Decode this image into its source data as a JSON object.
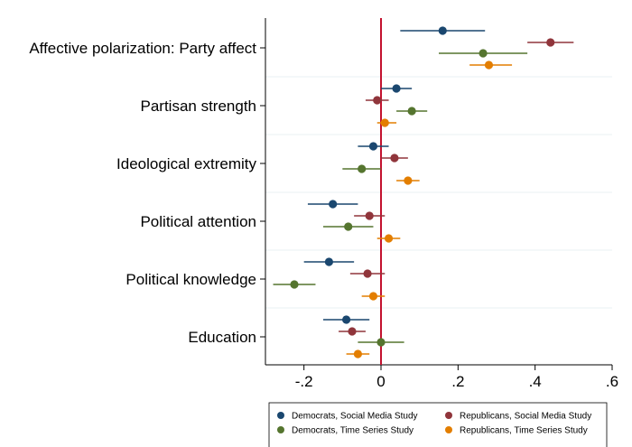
{
  "chart_data": {
    "type": "scatter",
    "orientation": "horizontal-coefficient-plot",
    "categories": [
      "Affective polarization: Party affect",
      "Partisan strength",
      "Ideological extremity",
      "Political attention",
      "Political knowledge",
      "Education"
    ],
    "xlim": [
      -0.3,
      0.6
    ],
    "xticks": [
      -0.2,
      0,
      0.2,
      0.4,
      0.6
    ],
    "xtick_labels": [
      "-.2",
      "0",
      ".2",
      ".4",
      ".6"
    ],
    "reference_line": {
      "x": 0,
      "color": "#c3122f"
    },
    "grid": "horizontal separators between categories",
    "legend_position": "bottom",
    "series": [
      {
        "name": "Democrats, Social Media Study",
        "color": "#1a476f",
        "points": [
          {
            "estimate": 0.16,
            "low": 0.05,
            "high": 0.27
          },
          {
            "estimate": 0.04,
            "low": 0.0,
            "high": 0.08
          },
          {
            "estimate": -0.02,
            "low": -0.06,
            "high": 0.02
          },
          {
            "estimate": -0.125,
            "low": -0.19,
            "high": -0.06
          },
          {
            "estimate": -0.135,
            "low": -0.2,
            "high": -0.07
          },
          {
            "estimate": -0.09,
            "low": -0.15,
            "high": -0.03
          }
        ]
      },
      {
        "name": "Republicans, Social Media Study",
        "color": "#90353b",
        "points": [
          {
            "estimate": 0.44,
            "low": 0.38,
            "high": 0.5
          },
          {
            "estimate": -0.01,
            "low": -0.04,
            "high": 0.02
          },
          {
            "estimate": 0.035,
            "low": 0.0,
            "high": 0.07
          },
          {
            "estimate": -0.03,
            "low": -0.07,
            "high": 0.01
          },
          {
            "estimate": -0.035,
            "low": -0.08,
            "high": 0.01
          },
          {
            "estimate": -0.075,
            "low": -0.11,
            "high": -0.04
          }
        ]
      },
      {
        "name": "Democrats, Time Series Study",
        "color": "#55752f",
        "points": [
          {
            "estimate": 0.265,
            "low": 0.15,
            "high": 0.38
          },
          {
            "estimate": 0.08,
            "low": 0.04,
            "high": 0.12
          },
          {
            "estimate": -0.05,
            "low": -0.1,
            "high": 0.0
          },
          {
            "estimate": -0.085,
            "low": -0.15,
            "high": -0.02
          },
          {
            "estimate": -0.225,
            "low": -0.28,
            "high": -0.17
          },
          {
            "estimate": 0.0,
            "low": -0.06,
            "high": 0.06
          }
        ]
      },
      {
        "name": "Republicans, Time Series Study",
        "color": "#e37e00",
        "points": [
          {
            "estimate": 0.28,
            "low": 0.23,
            "high": 0.34
          },
          {
            "estimate": 0.01,
            "low": -0.01,
            "high": 0.04
          },
          {
            "estimate": 0.07,
            "low": 0.04,
            "high": 0.1
          },
          {
            "estimate": 0.02,
            "low": -0.01,
            "high": 0.05
          },
          {
            "estimate": -0.02,
            "low": -0.05,
            "high": 0.01
          },
          {
            "estimate": -0.06,
            "low": -0.09,
            "high": -0.03
          }
        ]
      }
    ]
  }
}
